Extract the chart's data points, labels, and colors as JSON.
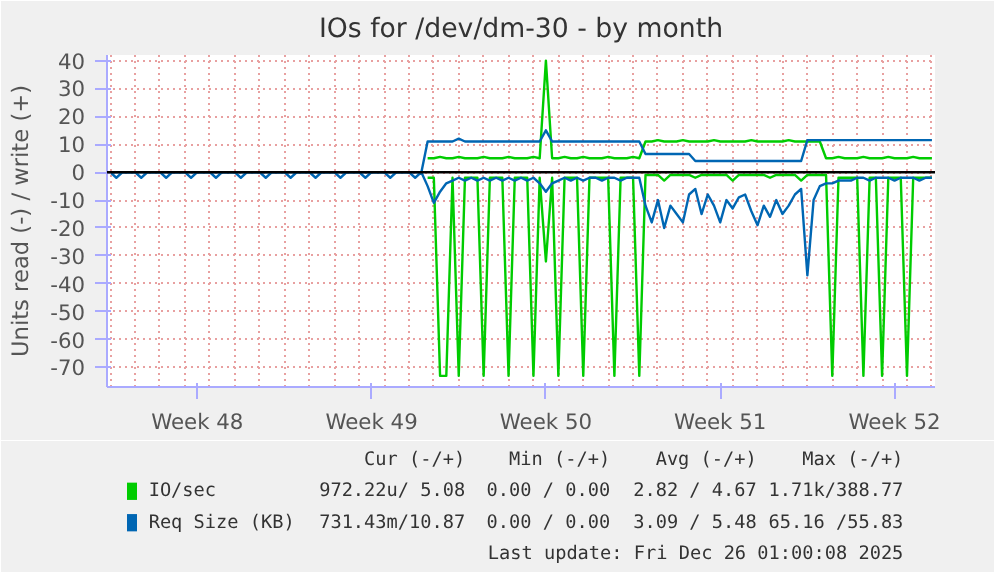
{
  "chart_data": {
    "type": "line",
    "title": "IOs for /dev/dm-30 - by month",
    "ylabel": "Units read (-) / write (+)",
    "categories": [
      null,
      null,
      null,
      null,
      null,
      null,
      null,
      null,
      null,
      null,
      null,
      null,
      null,
      null,
      "Week 48",
      null,
      null,
      null,
      null,
      null,
      null,
      null,
      null,
      null,
      null,
      null,
      null,
      null,
      null,
      null,
      null,
      null,
      null,
      null,
      null,
      null,
      null,
      null,
      null,
      null,
      null,
      null,
      "Week 49",
      null,
      null,
      null,
      null,
      null,
      null,
      null,
      null,
      null,
      null,
      null,
      null,
      null,
      null,
      null,
      null,
      null,
      null,
      null,
      null,
      null,
      null,
      null,
      null,
      null,
      null,
      null,
      "Week 50",
      null,
      null,
      null,
      null,
      null,
      null,
      null,
      null,
      null,
      null,
      null,
      null,
      null,
      null,
      null,
      null,
      null,
      null,
      null,
      null,
      null,
      null,
      null,
      null,
      null,
      null,
      null,
      "Week 51",
      null,
      null,
      null,
      null,
      null,
      null,
      null,
      null,
      null,
      null,
      null,
      null,
      null,
      null,
      null,
      null,
      null,
      null,
      null,
      null,
      null,
      null,
      null,
      null,
      null,
      null,
      null,
      "Week 52",
      null,
      null,
      null,
      null,
      null,
      null
    ],
    "ylim": [
      -77,
      42
    ],
    "yticks": [
      -70,
      -60,
      -50,
      -40,
      -30,
      -20,
      -10,
      0,
      10,
      20,
      30,
      40
    ],
    "grid": true,
    "legend": "bottom",
    "ref_lines": [
      {
        "axis": "y",
        "value": 0,
        "color": "#000000"
      }
    ],
    "annotations": [
      "Cur (-/+)",
      "Min (-/+)",
      "Avg (-/+)",
      "Max (-/+)",
      "972.22u/ 5.08",
      "0.00 / 0.00",
      "2.82 / 4.67",
      "1.71k/388.77",
      "731.43m/10.87",
      "0.00 / 0.00",
      "3.09 / 5.48",
      "65.16 /55.83",
      "Last update: Fri Dec 26 01:00:08 2025"
    ],
    "series": [
      {
        "name": "IO/sec",
        "color": "#00cc00",
        "values": [
          null,
          null,
          null,
          null,
          null,
          null,
          null,
          null,
          null,
          null,
          null,
          null,
          null,
          null,
          null,
          null,
          null,
          null,
          null,
          null,
          null,
          null,
          null,
          null,
          null,
          null,
          null,
          null,
          null,
          null,
          null,
          null,
          null,
          null,
          null,
          null,
          null,
          null,
          null,
          null,
          null,
          null,
          null,
          null,
          null,
          null,
          null,
          null,
          null,
          null,
          null,
          5,
          5,
          5.5,
          5,
          5,
          5.5,
          5,
          5,
          5,
          5.5,
          5,
          5,
          5,
          5.5,
          5,
          5,
          5,
          5.5,
          5,
          40,
          5,
          5,
          5.5,
          5,
          5,
          5.5,
          5,
          5,
          5,
          5.5,
          5,
          5,
          5,
          5.5,
          5,
          11,
          11,
          11.5,
          11,
          11,
          11,
          11.5,
          11,
          11,
          11,
          11,
          11.5,
          11,
          11,
          11,
          11,
          11,
          11.5,
          11,
          11,
          11,
          11,
          11,
          11.5,
          11,
          11,
          11,
          11,
          11,
          5,
          5,
          5.5,
          5,
          5,
          5,
          5.5,
          5,
          5,
          5,
          5.5,
          5,
          5,
          5,
          5.5,
          5,
          5,
          5
        ]
      },
      {
        "color": "#00cc00",
        "values": [
          null,
          null,
          null,
          null,
          null,
          null,
          null,
          null,
          null,
          null,
          null,
          null,
          null,
          null,
          null,
          null,
          null,
          null,
          null,
          null,
          null,
          null,
          null,
          null,
          null,
          null,
          null,
          null,
          null,
          null,
          null,
          null,
          null,
          null,
          null,
          null,
          null,
          null,
          null,
          null,
          null,
          null,
          null,
          null,
          null,
          null,
          null,
          null,
          null,
          null,
          null,
          -2,
          -2,
          -73,
          -73,
          -2,
          -73,
          -2,
          -2,
          -2,
          -73,
          -2,
          -2,
          -2,
          -73,
          -2,
          -2,
          -2,
          -73,
          -2,
          -32,
          -2,
          -73,
          -2,
          -2,
          -2,
          -73,
          -2,
          -2,
          -2,
          -2,
          -73,
          -2,
          -2,
          -2,
          -73,
          -1,
          -1,
          -1,
          -3,
          -1,
          -1,
          -1,
          -1,
          -2,
          -1,
          -1,
          -1,
          -1,
          -1,
          -3,
          -1,
          -1,
          -1,
          -1,
          -1,
          -2,
          -1,
          -1,
          -1,
          -1,
          -3,
          -1,
          -1,
          -1,
          -1,
          -73,
          -2,
          -2,
          -2,
          -2,
          -73,
          -2,
          -2,
          -73,
          -2,
          -2,
          -2,
          -73,
          -2,
          -2,
          -2,
          -2
        ]
      },
      {
        "name": "Req Size (KB)",
        "color": "#0066b3",
        "values": [
          0,
          0,
          0,
          0,
          0,
          0,
          0,
          0,
          0,
          0,
          0,
          0,
          0,
          0,
          0,
          0,
          0,
          0,
          0,
          0,
          0,
          0,
          0,
          0,
          0,
          0,
          0,
          0,
          0,
          0,
          0,
          0,
          0,
          0,
          0,
          0,
          0,
          0,
          0,
          0,
          0,
          0,
          0,
          0,
          0,
          0,
          0,
          0,
          0,
          0,
          0,
          11,
          11,
          11,
          11,
          11,
          12,
          11,
          11,
          11,
          11,
          11,
          11,
          11,
          11,
          11,
          11,
          11,
          11,
          11,
          15,
          11,
          11,
          11,
          11,
          11,
          11,
          11,
          11,
          11,
          11,
          11,
          11,
          11,
          11,
          11,
          6.5,
          6.5,
          6.5,
          6.5,
          6.5,
          6.5,
          6.5,
          6.5,
          4,
          4,
          4,
          4,
          4,
          4,
          4,
          4,
          4,
          4,
          4,
          4,
          4,
          4,
          4,
          4,
          4,
          4,
          11.5,
          11.5,
          11.5,
          11.5,
          11.5,
          11.5,
          11.5,
          11.5,
          11.5,
          11.5,
          11.5,
          11.5,
          11.5,
          11.5,
          11.5,
          11.5,
          11.5,
          11.5,
          11.5,
          11.5,
          11.5
        ]
      },
      {
        "color": "#0066b3",
        "values": [
          0,
          -2,
          0,
          0,
          0,
          -2,
          0,
          0,
          0,
          -2,
          0,
          0,
          0,
          -2,
          0,
          0,
          0,
          -2,
          0,
          0,
          0,
          -2,
          0,
          0,
          0,
          -2,
          0,
          0,
          0,
          -2,
          0,
          0,
          0,
          -2,
          0,
          0,
          0,
          -2,
          0,
          0,
          0,
          -2,
          0,
          0,
          0,
          -2,
          0,
          0,
          0,
          -2,
          0,
          -5,
          -11,
          -7,
          -4,
          -3,
          -2,
          -3,
          -2,
          -3,
          -2,
          -3,
          -2,
          -3,
          -2,
          -3,
          -2,
          -3,
          -2,
          -4,
          -7,
          -4,
          -3,
          -2,
          -3,
          -2,
          -3,
          -2,
          -2,
          -3,
          -2,
          -2,
          -3,
          -2,
          -2,
          -2,
          -12,
          -18,
          -10,
          -20,
          -12,
          -15,
          -18,
          -8,
          -6,
          -15,
          -8,
          -12,
          -18,
          -10,
          -13,
          -9,
          -8,
          -14,
          -19,
          -12,
          -16,
          -10,
          -15,
          -12,
          -8,
          -6,
          -37,
          -10,
          -5,
          -4,
          -4,
          -3,
          -3,
          -3,
          -2,
          -2,
          -3,
          -2,
          -2,
          -2,
          -3,
          -2,
          -2,
          -2,
          -3,
          -2,
          -2
        ]
      }
    ]
  }
}
